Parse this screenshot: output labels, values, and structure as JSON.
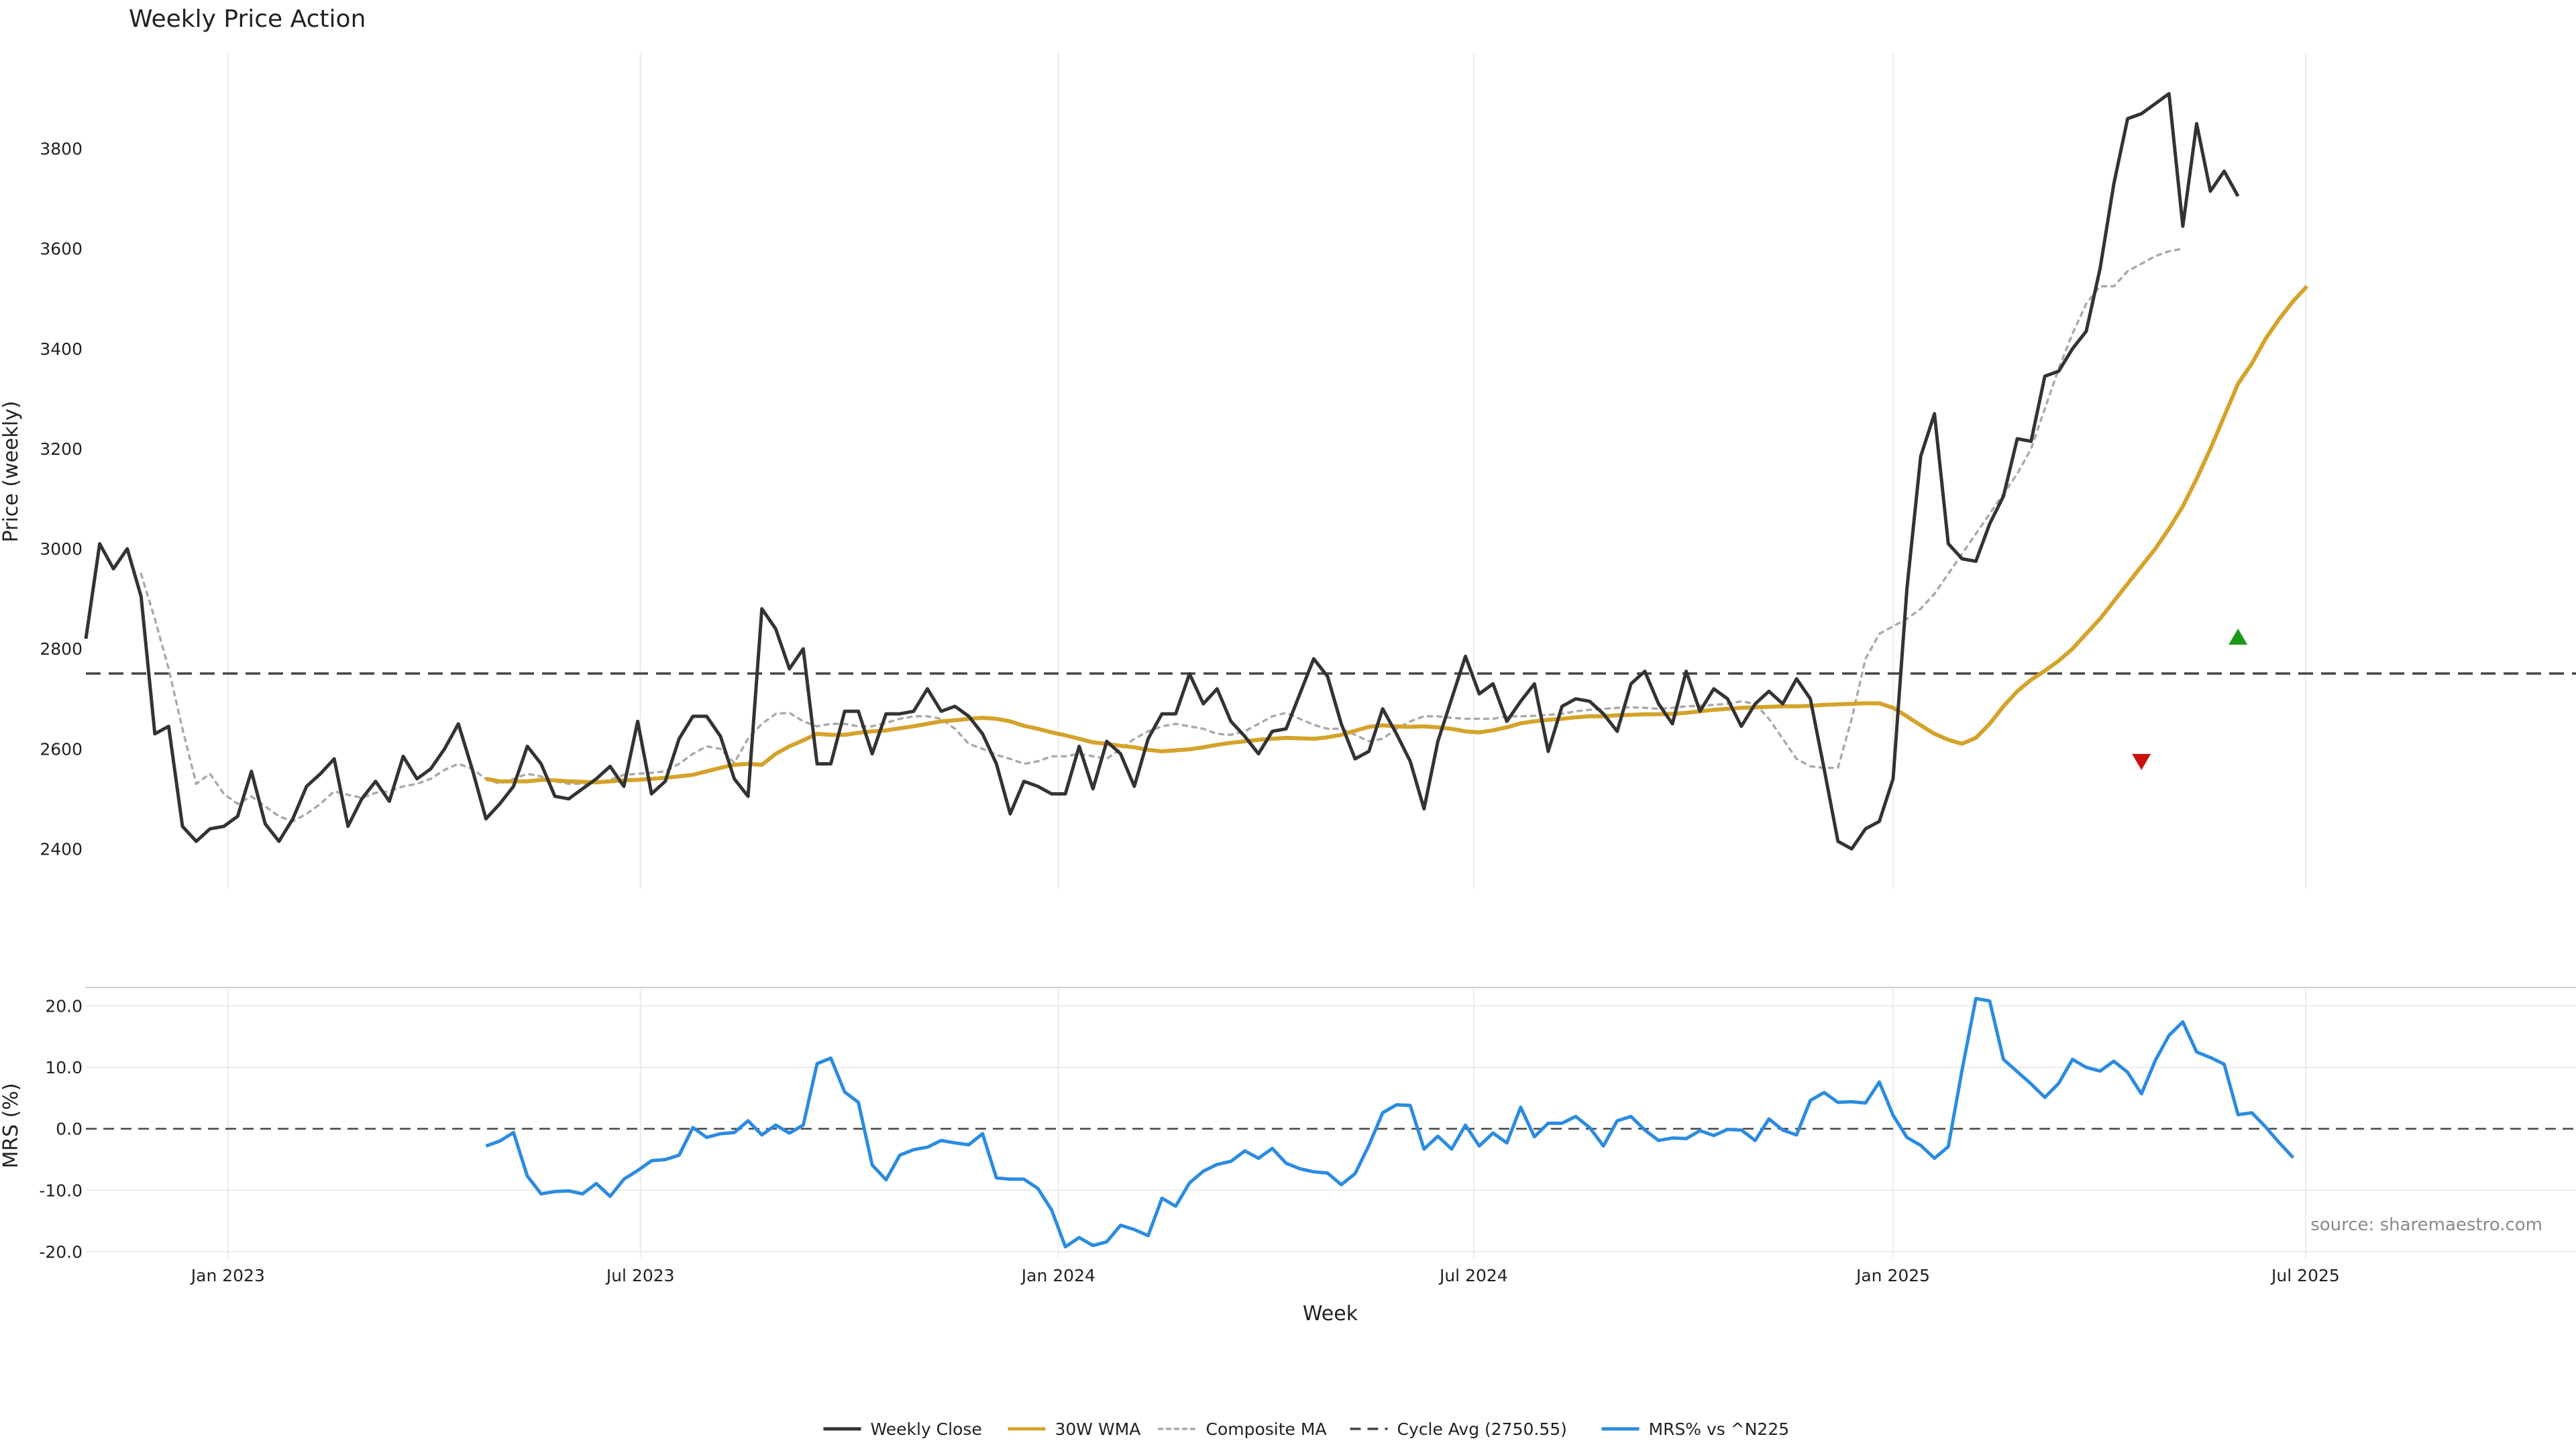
{
  "chart_data": {
    "type": "line",
    "title": "Weekly Price Action",
    "xlabel": "Week",
    "ylabel_top": "Price (weekly)",
    "ylabel_bottom": "MRS (%)",
    "source": "source: sharemaestro.com",
    "xlim_weeks": [
      0,
      180.5
    ],
    "price_ylim": [
      2320,
      3990
    ],
    "mrs_ylim": [
      -21,
      23
    ],
    "price_yticks": [
      "2400",
      "2600",
      "2800",
      "3000",
      "3200",
      "3400",
      "3600",
      "3800"
    ],
    "mrs_yticks": [
      "20.0",
      "10.0",
      "0.0",
      "-10.0",
      "-20.0"
    ],
    "x_ticks": [
      {
        "label": "Jan 2023",
        "week": 10.3
      },
      {
        "label": "Jul 2023",
        "week": 40.2
      },
      {
        "label": "Jan 2024",
        "week": 70.5
      },
      {
        "label": "Jul 2024",
        "week": 100.6
      },
      {
        "label": "Jan 2025",
        "week": 131.0
      },
      {
        "label": "Jul 2025",
        "week": 160.9
      }
    ],
    "cycle_avg": 2750.55,
    "colors": {
      "close": "#333333",
      "wma": "#d4a32a",
      "composite": "#aaaaaa",
      "cycle": "#444444",
      "mrs": "#2b8be0",
      "buy": "#1a9a1a",
      "sell": "#cc1111",
      "grid": "#ebebeb"
    },
    "series": [
      {
        "name": "Weekly Close",
        "start_week": 0,
        "values": [
          2820,
          3010,
          2960,
          3000,
          2905,
          2630,
          2645,
          2445,
          2415,
          2440,
          2445,
          2465,
          2555,
          2450,
          2415,
          2460,
          2525,
          2550,
          2580,
          2445,
          2500,
          2535,
          2495,
          2585,
          2540,
          2560,
          2600,
          2650,
          2560,
          2460,
          2490,
          2525,
          2605,
          2570,
          2505,
          2500,
          2520,
          2540,
          2565,
          2525,
          2655,
          2510,
          2535,
          2620,
          2665,
          2665,
          2625,
          2540,
          2505,
          2880,
          2840,
          2760,
          2800,
          2570,
          2570,
          2675,
          2675,
          2590,
          2670,
          2670,
          2675,
          2720,
          2675,
          2685,
          2665,
          2630,
          2570,
          2470,
          2535,
          2525,
          2510,
          2510,
          2605,
          2520,
          2615,
          2590,
          2525,
          2620,
          2670,
          2670,
          2750,
          2690,
          2720,
          2655,
          2625,
          2590,
          2635,
          2640,
          2710,
          2780,
          2745,
          2650,
          2580,
          2595,
          2680,
          2630,
          2575,
          2480,
          2615,
          2700,
          2785,
          2710,
          2730,
          2655,
          2695,
          2730,
          2595,
          2685,
          2700,
          2695,
          2670,
          2635,
          2730,
          2755,
          2690,
          2650,
          2755,
          2675,
          2720,
          2700,
          2645,
          2690,
          2715,
          2690,
          2740,
          2700,
          2560,
          2415,
          2400,
          2440,
          2455,
          2540,
          2920,
          3185,
          3270,
          3010,
          2980,
          2975,
          3050,
          3105,
          3220,
          3215,
          3345,
          3355,
          3400,
          3435,
          3560,
          3730,
          3860,
          3870,
          3890,
          3910,
          3645,
          3850,
          3715,
          3755,
          3705
        ]
      },
      {
        "name": "30W WMA",
        "start_week": 29,
        "values": [
          2540,
          2535,
          2535,
          2535,
          2538,
          2537,
          2535,
          2534,
          2533,
          2535,
          2537,
          2538,
          2540,
          2542,
          2545,
          2548,
          2555,
          2562,
          2568,
          2570,
          2568,
          2590,
          2605,
          2617,
          2630,
          2628,
          2628,
          2632,
          2635,
          2637,
          2641,
          2645,
          2650,
          2655,
          2657,
          2660,
          2662,
          2660,
          2655,
          2646,
          2640,
          2633,
          2627,
          2620,
          2613,
          2610,
          2606,
          2603,
          2598,
          2595,
          2597,
          2599,
          2603,
          2608,
          2612,
          2615,
          2618,
          2620,
          2622,
          2621,
          2620,
          2623,
          2628,
          2636,
          2644,
          2647,
          2645,
          2644,
          2645,
          2643,
          2640,
          2635,
          2633,
          2637,
          2643,
          2651,
          2655,
          2658,
          2660,
          2663,
          2665,
          2665,
          2667,
          2668,
          2669,
          2669,
          2670,
          2672,
          2675,
          2678,
          2680,
          2682,
          2683,
          2684,
          2685,
          2685,
          2686,
          2688,
          2689,
          2690,
          2691,
          2691,
          2682,
          2665,
          2647,
          2630,
          2618,
          2610,
          2622,
          2650,
          2685,
          2715,
          2738,
          2756,
          2776,
          2800,
          2830,
          2860,
          2895,
          2930,
          2965,
          3000,
          3040,
          3085,
          3140,
          3200,
          3265,
          3330,
          3370,
          3420,
          3460,
          3495,
          3525
        ]
      },
      {
        "name": "Composite MA",
        "start_week": 4,
        "values": [
          2950,
          2860,
          2760,
          2640,
          2530,
          2550,
          2510,
          2490,
          2505,
          2485,
          2465,
          2455,
          2470,
          2490,
          2515,
          2508,
          2502,
          2512,
          2515,
          2525,
          2530,
          2540,
          2558,
          2570,
          2560,
          2540,
          2530,
          2540,
          2550,
          2545,
          2535,
          2530,
          2530,
          2532,
          2538,
          2548,
          2550,
          2552,
          2555,
          2570,
          2590,
          2605,
          2600,
          2572,
          2620,
          2650,
          2670,
          2672,
          2655,
          2645,
          2650,
          2650,
          2645,
          2645,
          2652,
          2660,
          2665,
          2665,
          2660,
          2640,
          2610,
          2600,
          2588,
          2580,
          2570,
          2575,
          2585,
          2585,
          2590,
          2585,
          2580,
          2600,
          2620,
          2635,
          2645,
          2650,
          2645,
          2640,
          2630,
          2628,
          2635,
          2650,
          2665,
          2672,
          2660,
          2648,
          2640,
          2640,
          2628,
          2615,
          2620,
          2640,
          2655,
          2665,
          2665,
          2662,
          2660,
          2660,
          2660,
          2665,
          2665,
          2666,
          2668,
          2670,
          2675,
          2678,
          2680,
          2682,
          2683,
          2682,
          2680,
          2682,
          2685,
          2686,
          2688,
          2690,
          2695,
          2690,
          2660,
          2620,
          2580,
          2565,
          2562,
          2562,
          2660,
          2780,
          2830,
          2845,
          2860,
          2880,
          2910,
          2950,
          2990,
          3030,
          3070,
          3110,
          3150,
          3200,
          3280,
          3360,
          3430,
          3490,
          3525,
          3525,
          3555,
          3570,
          3585,
          3595,
          3600
        ]
      },
      {
        "name": "MRS% vs ^N225",
        "start_week": 29,
        "values": [
          -2.8,
          -2.0,
          -0.6,
          -7.7,
          -10.6,
          -10.2,
          -10.1,
          -10.6,
          -8.9,
          -11.0,
          -8.2,
          -6.8,
          -5.2,
          -5.0,
          -4.3,
          0.2,
          -1.4,
          -0.8,
          -0.6,
          1.3,
          -1.0,
          0.6,
          -0.7,
          0.6,
          10.6,
          11.5,
          6.0,
          4.3,
          -5.9,
          -8.3,
          -4.3,
          -3.4,
          -3.0,
          -1.9,
          -2.3,
          -2.6,
          -0.8,
          -8.0,
          -8.2,
          -8.2,
          -9.7,
          -13.2,
          -19.2,
          -17.7,
          -19.0,
          -18.4,
          -15.7,
          -16.4,
          -17.4,
          -11.3,
          -12.6,
          -8.8,
          -6.9,
          -5.8,
          -5.3,
          -3.6,
          -4.8,
          -3.2,
          -5.6,
          -6.5,
          -7.0,
          -7.2,
          -9.1,
          -7.3,
          -2.7,
          2.6,
          3.9,
          3.8,
          -3.3,
          -1.2,
          -3.3,
          0.6,
          -2.8,
          -0.7,
          -2.3,
          3.5,
          -1.3,
          0.9,
          0.9,
          2.0,
          0.2,
          -2.8,
          1.3,
          2.0,
          -0.2,
          -1.9,
          -1.5,
          -1.6,
          -0.3,
          -1.1,
          -0.1,
          -0.2,
          -1.9,
          1.6,
          -0.2,
          -1.0,
          4.6,
          5.9,
          4.3,
          4.4,
          4.2,
          7.6,
          2.2,
          -1.4,
          -2.7,
          -4.8,
          -2.9,
          9.6,
          21.2,
          20.8,
          11.3,
          9.3,
          7.3,
          5.1,
          7.4,
          11.3,
          10.0,
          9.4,
          11.0,
          9.2,
          5.7,
          11.1,
          15.2,
          17.4,
          12.5,
          11.6,
          10.5,
          2.3,
          2.6,
          0.3,
          -2.3,
          -4.7
        ]
      }
    ],
    "signals": [
      {
        "type": "sell",
        "week": 149,
        "price": 2575
      },
      {
        "type": "buy",
        "week": 156,
        "price": 2823
      }
    ],
    "legend": [
      {
        "label": "Weekly Close",
        "style": "solid",
        "color": "#333333"
      },
      {
        "label": "30W WMA",
        "style": "solid",
        "color": "#d4a32a"
      },
      {
        "label": "Composite MA",
        "style": "dotted",
        "color": "#aaaaaa"
      },
      {
        "label": "Cycle Avg (2750.55)",
        "style": "dashed",
        "color": "#444444"
      },
      {
        "label": "MRS% vs ^N225",
        "style": "solid",
        "color": "#2b8be0"
      }
    ]
  }
}
